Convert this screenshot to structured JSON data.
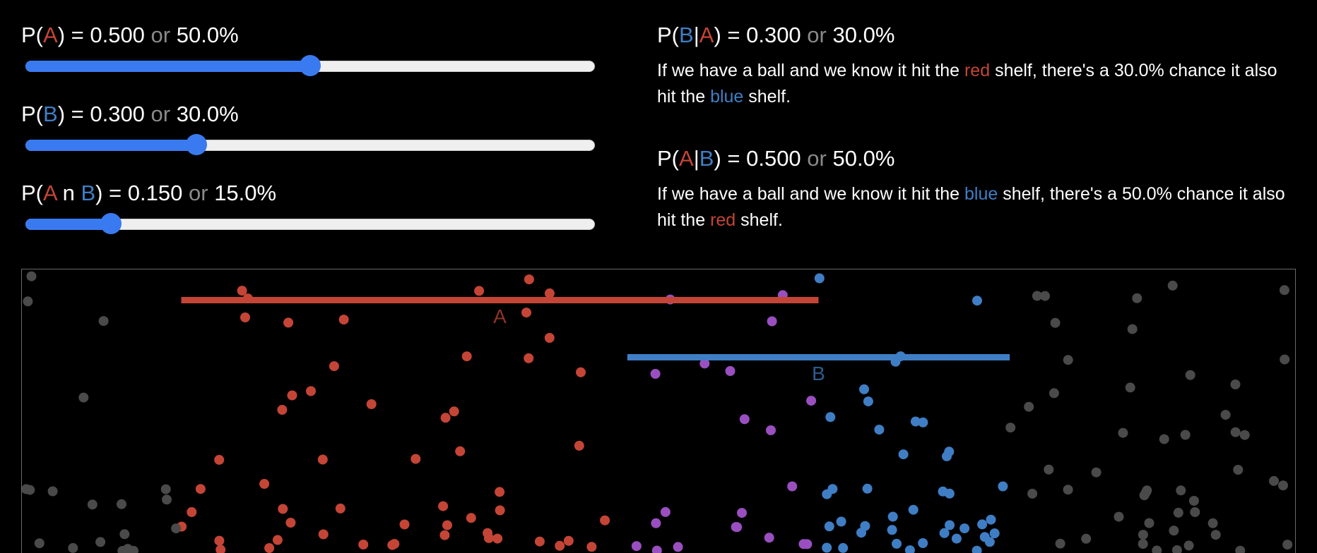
{
  "sliders": [
    {
      "event": "A",
      "value": 0.5,
      "prefix": "P(",
      "label_a": "A",
      "mid": "",
      "label_b": "",
      "suffix": ") = ",
      "decimal": "0.500",
      "or": "or",
      "percent": "50.0%"
    },
    {
      "event": "B",
      "value": 0.3,
      "prefix": "P(",
      "label_a": "",
      "mid": "",
      "label_b": "B",
      "suffix": ") = ",
      "decimal": "0.300",
      "or": "or",
      "percent": "30.0%"
    },
    {
      "event": "A n B",
      "value": 0.15,
      "prefix": "P(",
      "label_a": "A",
      "mid": " n ",
      "label_b": "B",
      "suffix": ") = ",
      "decimal": "0.150",
      "or": "or",
      "percent": "15.0%"
    }
  ],
  "b_given_a": {
    "prefix": "P(",
    "first": "B",
    "bar": "|",
    "second": "A",
    "suffix": ") = ",
    "decimal": "0.300",
    "or": "or",
    "percent": "30.0%",
    "desc_1": "If we have a ball and we know it hit the ",
    "desc_color": "red",
    "desc_2": " shelf, there's a 30.0% chance it also hit the ",
    "desc_color2": "blue",
    "desc_3": " shelf."
  },
  "a_given_b": {
    "prefix": "P(",
    "first": "A",
    "bar": "|",
    "second": "B",
    "suffix": ") = ",
    "decimal": "0.500",
    "or": "or",
    "percent": "50.0%",
    "desc_1": "If we have a ball and we know it hit the ",
    "desc_color": "blue",
    "desc_2": " shelf, there's a 50.0% chance it also hit the ",
    "desc_color2": "red",
    "desc_3": " shelf."
  },
  "shelves": [
    {
      "label": "A",
      "color": "#c44536",
      "start": 0.125,
      "end": 0.625
    },
    {
      "label": "B",
      "color": "#3f7ec4",
      "start": 0.475,
      "end": 0.775
    }
  ],
  "colors": {
    "red": "#c44536",
    "blue": "#3f7ec4",
    "both": "#9a4fc0",
    "none": "#4a4a4a",
    "slider_accent": "#3a7af0"
  }
}
